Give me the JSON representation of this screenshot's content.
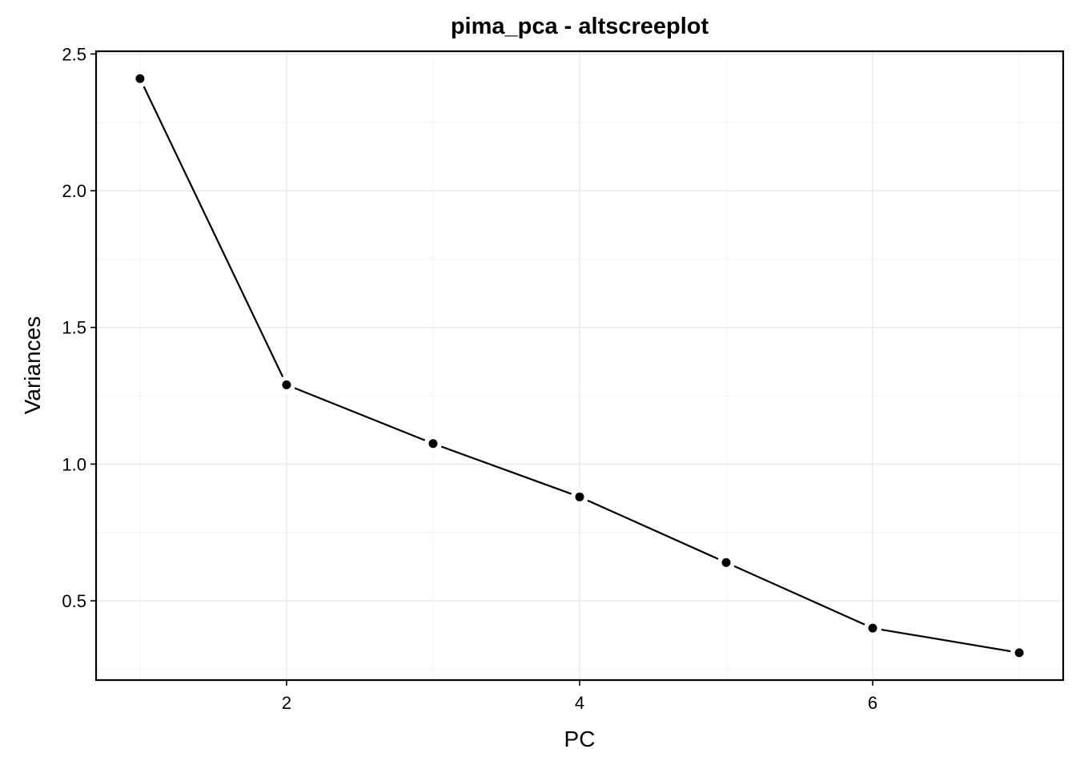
{
  "chart_data": {
    "type": "line",
    "title": "pima_pca - altscreeplot",
    "xlabel": "PC",
    "ylabel": "Variances",
    "x": [
      1,
      2,
      3,
      4,
      5,
      6,
      7
    ],
    "values": [
      2.41,
      1.29,
      1.075,
      0.88,
      0.64,
      0.4,
      0.31
    ],
    "xlim": [
      0.7,
      7.3
    ],
    "ylim": [
      0.21,
      2.51
    ],
    "x_ticks": [
      2,
      4,
      6
    ],
    "x_tick_labels": [
      "2",
      "4",
      "6"
    ],
    "y_ticks": [
      0.5,
      1.0,
      1.5,
      2.0,
      2.5
    ],
    "y_tick_labels": [
      "0.5",
      "1.0",
      "1.5",
      "2.0",
      "2.5"
    ],
    "grid": true,
    "line_color": "#000000",
    "point_color": "#000000",
    "grid_color": "#ebebeb"
  }
}
